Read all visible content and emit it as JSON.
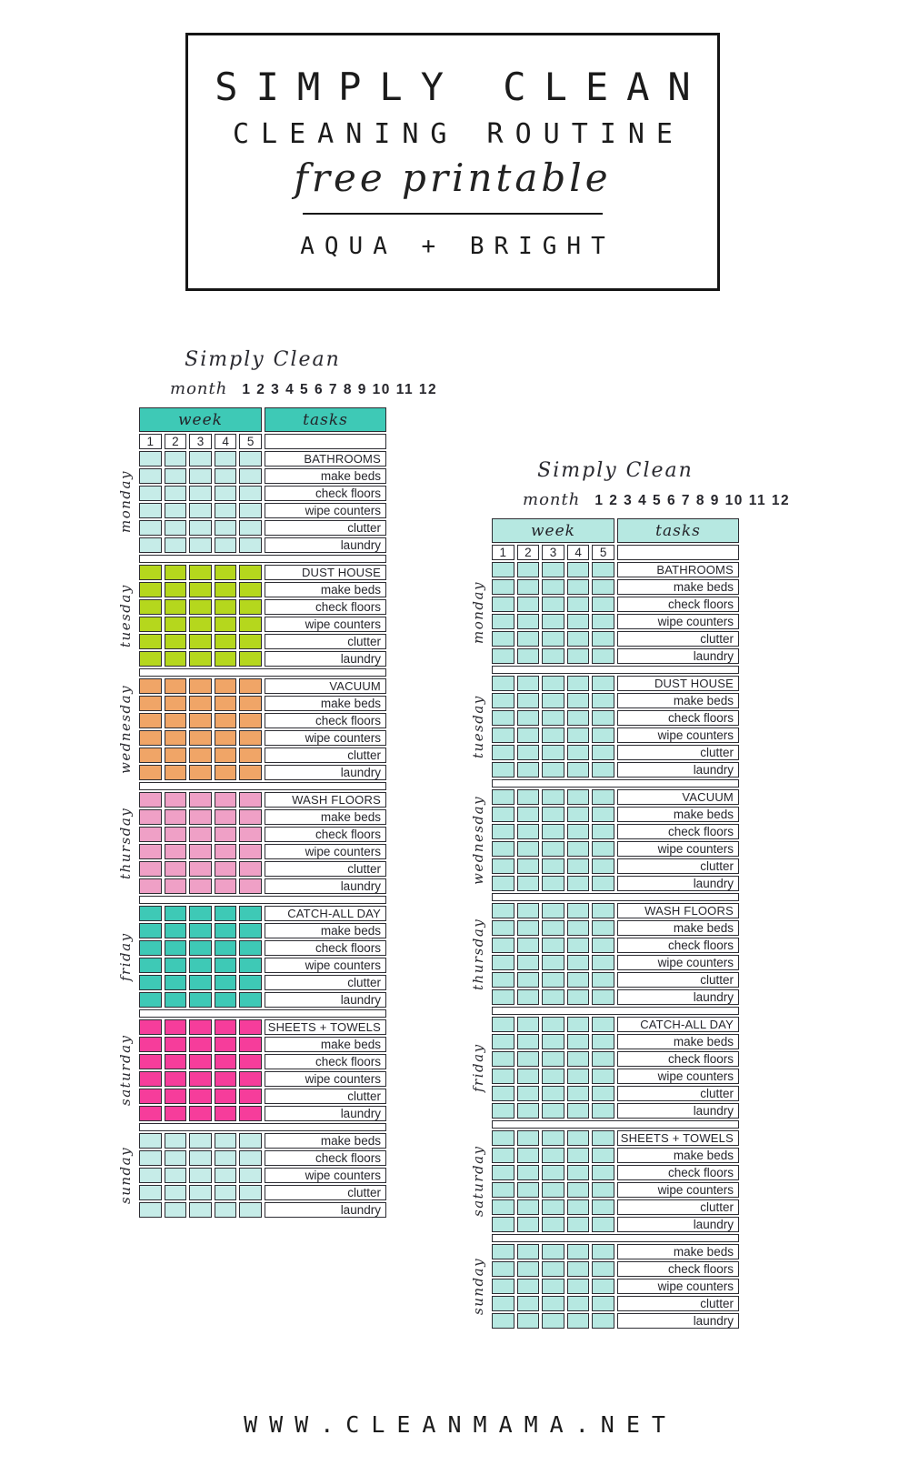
{
  "header": {
    "title": "SIMPLY CLEAN",
    "subtitle": "CLEANING ROUTINE",
    "script": "free printable",
    "variant": "AQUA + BRIGHT"
  },
  "footer": {
    "site": "WWW.CLEANMAMA.NET"
  },
  "palette": {
    "border": "#2d2d33",
    "text": "#26262c"
  },
  "tables": [
    {
      "id": "bright",
      "title": "Simply Clean",
      "month_label": "month",
      "month_numbers": "1 2 3 4 5 6 7 8 9 10 11 12",
      "week_label": "week",
      "tasks_label": "tasks",
      "week_numbers": [
        "1",
        "2",
        "3",
        "4",
        "5"
      ],
      "header_color": "#3ec9b6",
      "days": [
        {
          "name": "monday",
          "color": "#c6ece8",
          "tasks": [
            "BATHROOMS",
            "make beds",
            "check floors",
            "wipe counters",
            "clutter",
            "laundry"
          ]
        },
        {
          "name": "tuesday",
          "color": "#b5d71d",
          "tasks": [
            "DUST HOUSE",
            "make beds",
            "check floors",
            "wipe counters",
            "clutter",
            "laundry"
          ]
        },
        {
          "name": "wednesday",
          "color": "#f0a567",
          "tasks": [
            "VACUUM",
            "make beds",
            "check floors",
            "wipe counters",
            "clutter",
            "laundry"
          ]
        },
        {
          "name": "thursday",
          "color": "#efa0c6",
          "tasks": [
            "WASH FLOORS",
            "make beds",
            "check floors",
            "wipe counters",
            "clutter",
            "laundry"
          ]
        },
        {
          "name": "friday",
          "color": "#3ec9b6",
          "tasks": [
            "CATCH-ALL DAY",
            "make beds",
            "check floors",
            "wipe counters",
            "clutter",
            "laundry"
          ]
        },
        {
          "name": "saturday",
          "color": "#f63d9b",
          "tasks": [
            "SHEETS + TOWELS",
            "make beds",
            "check floors",
            "wipe counters",
            "clutter",
            "laundry"
          ]
        },
        {
          "name": "sunday",
          "color": "#c6ece8",
          "tasks": [
            "make beds",
            "check floors",
            "wipe counters",
            "clutter",
            "laundry"
          ]
        }
      ]
    },
    {
      "id": "aqua",
      "title": "Simply Clean",
      "month_label": "month",
      "month_numbers": "1 2 3 4 5 6 7 8 9 10 11 12",
      "week_label": "week",
      "tasks_label": "tasks",
      "week_numbers": [
        "1",
        "2",
        "3",
        "4",
        "5"
      ],
      "header_color": "#b6e8e1",
      "days": [
        {
          "name": "monday",
          "color": "#b6e8e1",
          "tasks": [
            "BATHROOMS",
            "make beds",
            "check floors",
            "wipe counters",
            "clutter",
            "laundry"
          ]
        },
        {
          "name": "tuesday",
          "color": "#b6e8e1",
          "tasks": [
            "DUST HOUSE",
            "make beds",
            "check floors",
            "wipe counters",
            "clutter",
            "laundry"
          ]
        },
        {
          "name": "wednesday",
          "color": "#b6e8e1",
          "tasks": [
            "VACUUM",
            "make beds",
            "check floors",
            "wipe counters",
            "clutter",
            "laundry"
          ]
        },
        {
          "name": "thursday",
          "color": "#b6e8e1",
          "tasks": [
            "WASH FLOORS",
            "make beds",
            "check floors",
            "wipe counters",
            "clutter",
            "laundry"
          ]
        },
        {
          "name": "friday",
          "color": "#b6e8e1",
          "tasks": [
            "CATCH-ALL DAY",
            "make beds",
            "check floors",
            "wipe counters",
            "clutter",
            "laundry"
          ]
        },
        {
          "name": "saturday",
          "color": "#b6e8e1",
          "tasks": [
            "SHEETS + TOWELS",
            "make beds",
            "check floors",
            "wipe counters",
            "clutter",
            "laundry"
          ]
        },
        {
          "name": "sunday",
          "color": "#b6e8e1",
          "tasks": [
            "make beds",
            "check floors",
            "wipe counters",
            "clutter",
            "laundry"
          ]
        }
      ]
    }
  ]
}
